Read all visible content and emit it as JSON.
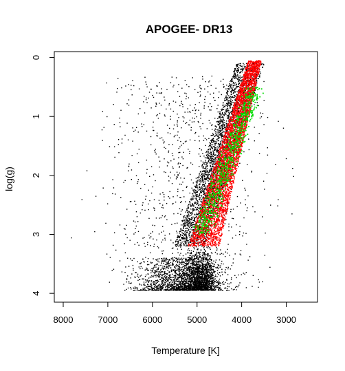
{
  "chart_data": {
    "type": "scatter",
    "title": "APOGEE- DR13",
    "xlabel": "Temperature [K]",
    "ylabel": "log(g)",
    "x_reversed": true,
    "y_reversed": true,
    "xlim": [
      8200,
      2300
    ],
    "ylim": [
      -0.1,
      4.15
    ],
    "x_ticks": [
      8000,
      7000,
      6000,
      5000,
      4000,
      3000
    ],
    "x_tick_labels": [
      "8000",
      "7000",
      "6000",
      "5000",
      "4000",
      "3000"
    ],
    "y_ticks": [
      0,
      1,
      2,
      3,
      4
    ],
    "y_tick_labels": [
      "0",
      "1",
      "2",
      "3",
      "4"
    ],
    "legend": "none",
    "grid": false,
    "series": [
      {
        "color": "#000000",
        "values_note": "approximate density regions (Teff range at logg)",
        "regions": [
          {
            "logg_range": [
              0.1,
              3.2
            ],
            "teff_cool_edge": [
              3550,
              4900
            ],
            "teff_hot_edge": [
              3900,
              5300
            ],
            "weight": 0.42
          },
          {
            "logg_range": [
              3.2,
              3.95
            ],
            "teff_range": [
              4400,
              5500
            ],
            "weight": 0.2
          },
          {
            "logg_range": [
              3.4,
              3.95
            ],
            "teff_range": [
              4000,
              6800
            ],
            "weight": 0.23
          },
          {
            "logg_range": [
              0.3,
              3.95
            ],
            "teff_range": [
              2700,
              7900
            ],
            "weight": 0.15
          }
        ]
      },
      {
        "color": "#ff0000",
        "values_note": "giant branch (Teff range at logg)",
        "regions": [
          {
            "logg_range": [
              0.05,
              3.2
            ],
            "teff_cool_edge": [
              3550,
              4500
            ],
            "teff_hot_edge": [
              3850,
              5200
            ]
          }
        ]
      },
      {
        "color": "#00dd00",
        "values_note": "narrow ridge inside giant branch (Teff at logg)",
        "regions": [
          {
            "logg_range": [
              0.5,
              3.0
            ],
            "teff_center": [
              3700,
              4900
            ],
            "spread": 250
          }
        ]
      }
    ]
  }
}
